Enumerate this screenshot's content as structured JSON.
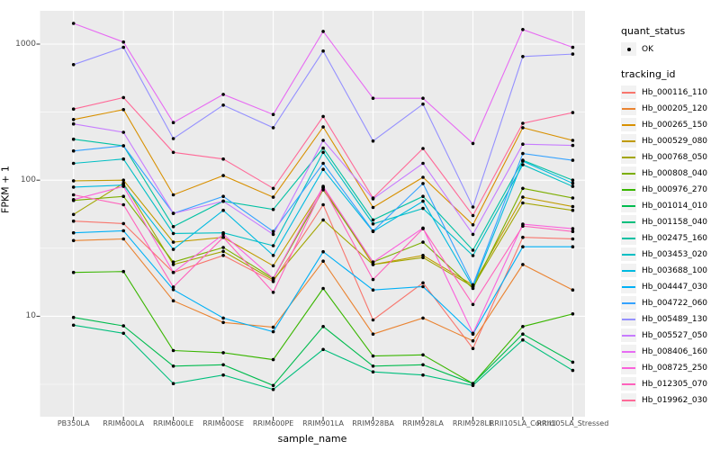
{
  "figure": {
    "background": "#FFFFFF",
    "panel_background": "#EBEBEB",
    "grid_color": "#FFFFFF",
    "axis_text_color": "#4D4D4D",
    "point_color": "#000000"
  },
  "y_axis": {
    "title": "FPKM + 1"
  },
  "x_axis": {
    "title": "sample_name"
  },
  "legend": {
    "quant_title": "quant_status",
    "quant_ok_label": "OK",
    "tracking_title": "tracking_id"
  },
  "chart_data": {
    "type": "line",
    "y_scale": "log10",
    "ylabel": "FPKM + 1",
    "xlabel": "sample_name",
    "y_ticks": [
      10,
      100,
      1000
    ],
    "y_minor_ticks": [
      3.162,
      31.62,
      316.2
    ],
    "ylim": [
      1.8,
      1800
    ],
    "grid": true,
    "legend_position": "right",
    "point_marker": "black dot at every vertex",
    "x_categories": [
      "PB350LA",
      "RRIM600LA",
      "RRIM600LE",
      "RRIM600SE",
      "RRIM600PE",
      "RRIM901LA",
      "RRIM928BA",
      "RRIM928LA",
      "RRIM928LE",
      "RRII105LA_Control",
      "RRII105LA_Stressed"
    ],
    "series": [
      {
        "name": "Hb_000116_110",
        "color": "#F8766D",
        "values": [
          50,
          48,
          21,
          28,
          18,
          66,
          9.4,
          17.6,
          5.8,
          38,
          37
        ]
      },
      {
        "name": "Hb_000205_120",
        "color": "#EA8331",
        "values": [
          36,
          37,
          13,
          9,
          8.3,
          25.4,
          7.4,
          9.7,
          6.6,
          24,
          15.6
        ]
      },
      {
        "name": "Hb_000265_150",
        "color": "#D89000",
        "values": [
          279,
          330,
          78,
          108,
          75,
          246,
          63,
          105,
          47,
          243,
          196
        ]
      },
      {
        "name": "Hb_000529_080",
        "color": "#C09B00",
        "values": [
          99,
          100,
          35,
          38,
          23.5,
          88,
          24,
          28,
          17,
          75,
          64
        ]
      },
      {
        "name": "Hb_000768_050",
        "color": "#A3A500",
        "values": [
          56,
          95,
          24,
          30,
          18.5,
          51,
          24,
          27,
          16.5,
          68,
          60
        ]
      },
      {
        "name": "Hb_000808_040",
        "color": "#7CAE00",
        "values": [
          71,
          76,
          25,
          32,
          19,
          85,
          25,
          35,
          16,
          87,
          74
        ]
      },
      {
        "name": "Hb_000976_270",
        "color": "#39B600",
        "values": [
          21,
          21.3,
          5.6,
          5.4,
          4.8,
          16,
          5.1,
          5.2,
          3.2,
          8.4,
          10.4
        ]
      },
      {
        "name": "Hb_001014_010",
        "color": "#00BB4E",
        "values": [
          9.8,
          8.5,
          4.3,
          4.4,
          3.1,
          8.4,
          4.3,
          4.4,
          3.2,
          7.4,
          4.6
        ]
      },
      {
        "name": "Hb_001158_040",
        "color": "#00BF7D",
        "values": [
          8.6,
          7.5,
          3.2,
          3.7,
          2.9,
          5.7,
          3.9,
          3.7,
          3.1,
          6.7,
          4
        ]
      },
      {
        "name": "Hb_002475_160",
        "color": "#00C1A3",
        "values": [
          200,
          179,
          45.6,
          70,
          61,
          172,
          51,
          76,
          30.6,
          140,
          100
        ]
      },
      {
        "name": "Hb_003453_020",
        "color": "#00BFC4",
        "values": [
          133,
          143,
          40.6,
          41,
          33,
          160,
          47.7,
          62,
          27.9,
          130,
          90
        ]
      },
      {
        "name": "Hb_003688_100",
        "color": "#00BAE0",
        "values": [
          89,
          92,
          31,
          60,
          28,
          120,
          42,
          70,
          16.5,
          138,
          95
        ]
      },
      {
        "name": "Hb_004447_030",
        "color": "#00B0F6",
        "values": [
          41,
          42.5,
          15.7,
          9.7,
          7.7,
          29.8,
          15.6,
          16.5,
          7.4,
          32.4,
          32.4
        ]
      },
      {
        "name": "Hb_004722_060",
        "color": "#35A2FF",
        "values": [
          164,
          179,
          57,
          76,
          42,
          133,
          42.3,
          94.5,
          17,
          157,
          140
        ]
      },
      {
        "name": "Hb_005489_130",
        "color": "#9590FF",
        "values": [
          707,
          946,
          202,
          356,
          243,
          890,
          194,
          362,
          63.5,
          811,
          845
        ]
      },
      {
        "name": "Hb_005527_050",
        "color": "#C77CFF",
        "values": [
          259,
          225,
          57,
          70,
          40,
          196,
          73,
          133,
          40,
          184,
          180
        ]
      },
      {
        "name": "Hb_008406_160",
        "color": "#E76BF3",
        "values": [
          1420,
          1035,
          265,
          427,
          304,
          1240,
          400,
          400,
          186,
          1280,
          946
        ]
      },
      {
        "name": "Hb_008725_250",
        "color": "#FA62DB",
        "values": [
          72,
          90,
          21,
          40,
          19,
          90,
          25,
          44.5,
          7.5,
          47.5,
          44
        ]
      },
      {
        "name": "Hb_012305_070",
        "color": "#FF62BC",
        "values": [
          78,
          66,
          16.4,
          38,
          15,
          88,
          18.6,
          44,
          12.2,
          46,
          42
        ]
      },
      {
        "name": "Hb_019962_030",
        "color": "#FF6A98",
        "values": [
          333,
          405,
          160,
          143,
          87,
          294,
          74,
          171,
          55,
          262,
          314
        ]
      }
    ]
  }
}
